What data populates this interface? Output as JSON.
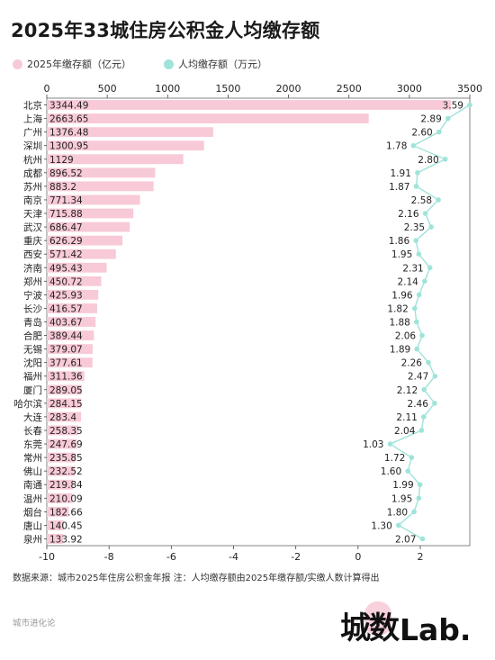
{
  "header": {
    "title": "2025年33城住房公积金人均缴存额"
  },
  "legend": {
    "deposit_label": "2025年缴存额（亿元）",
    "per_capita_label": "人均缴存额（万元）",
    "deposit_color": "#f8c9d6",
    "per_capita_color": "#9fe3d9"
  },
  "footer": {
    "note": "数据来源：城市2025年住房公积金年报 注：人均缴存额由2025年缴存额/实缴人数计算得出",
    "author": "城市进化论",
    "logo_cn": "城数",
    "logo_en": "Lab."
  },
  "chart_data": {
    "type": "bar",
    "title": "2025年33城住房公积金人均缴存额",
    "categories": [
      "北京",
      "上海",
      "广州",
      "深圳",
      "杭州",
      "成都",
      "苏州",
      "南京",
      "天津",
      "武汉",
      "重庆",
      "西安",
      "济南",
      "郑州",
      "宁波",
      "长沙",
      "青岛",
      "合肥",
      "无锡",
      "沈阳",
      "福州",
      "厦门",
      "哈尔滨",
      "大连",
      "长春",
      "东莞",
      "常州",
      "佛山",
      "南通",
      "温州",
      "烟台",
      "唐山",
      "泉州"
    ],
    "series": [
      {
        "name": "2025年缴存额（亿元）",
        "type": "bar",
        "axis": "top",
        "values": [
          "3344.49",
          "2663.65",
          "1376.48",
          "1300.95",
          "1129",
          "896.52",
          "883.2",
          "771.34",
          "715.88",
          "686.47",
          "626.29",
          "571.42",
          "495.43",
          "450.72",
          "425.93",
          "416.57",
          "403.67",
          "389.44",
          "379.07",
          "377.61",
          "311.36",
          "289.05",
          "284.15",
          "283.4",
          "258.35",
          "247.69",
          "235.85",
          "232.52",
          "219.84",
          "210.09",
          "182.66",
          "140.45",
          "133.92"
        ]
      },
      {
        "name": "人均缴存额（万元）",
        "type": "line",
        "axis": "bottom",
        "values": [
          "3.59",
          "2.89",
          "2.60",
          "1.78",
          "2.80",
          "1.91",
          "1.87",
          "2.58",
          "2.16",
          "2.35",
          "1.86",
          "1.95",
          "2.31",
          "2.14",
          "1.96",
          "1.82",
          "1.88",
          "2.06",
          "1.89",
          "2.26",
          "2.47",
          "2.12",
          "2.46",
          "2.11",
          "2.04",
          "1.03",
          "1.72",
          "1.60",
          "1.99",
          "1.95",
          "1.80",
          "1.30",
          "2.07"
        ]
      }
    ],
    "top_axis": {
      "ticks": [
        "0",
        "500",
        "1000",
        "1500",
        "2000",
        "2500",
        "3000",
        "3500"
      ],
      "range": [
        0,
        3500
      ]
    },
    "bottom_axis": {
      "ticks": [
        "-10",
        "-8",
        "-6",
        "-4",
        "-2",
        "0",
        "2"
      ],
      "range": [
        -10,
        3.59
      ]
    },
    "grid": true,
    "legend_position": "top-left"
  }
}
